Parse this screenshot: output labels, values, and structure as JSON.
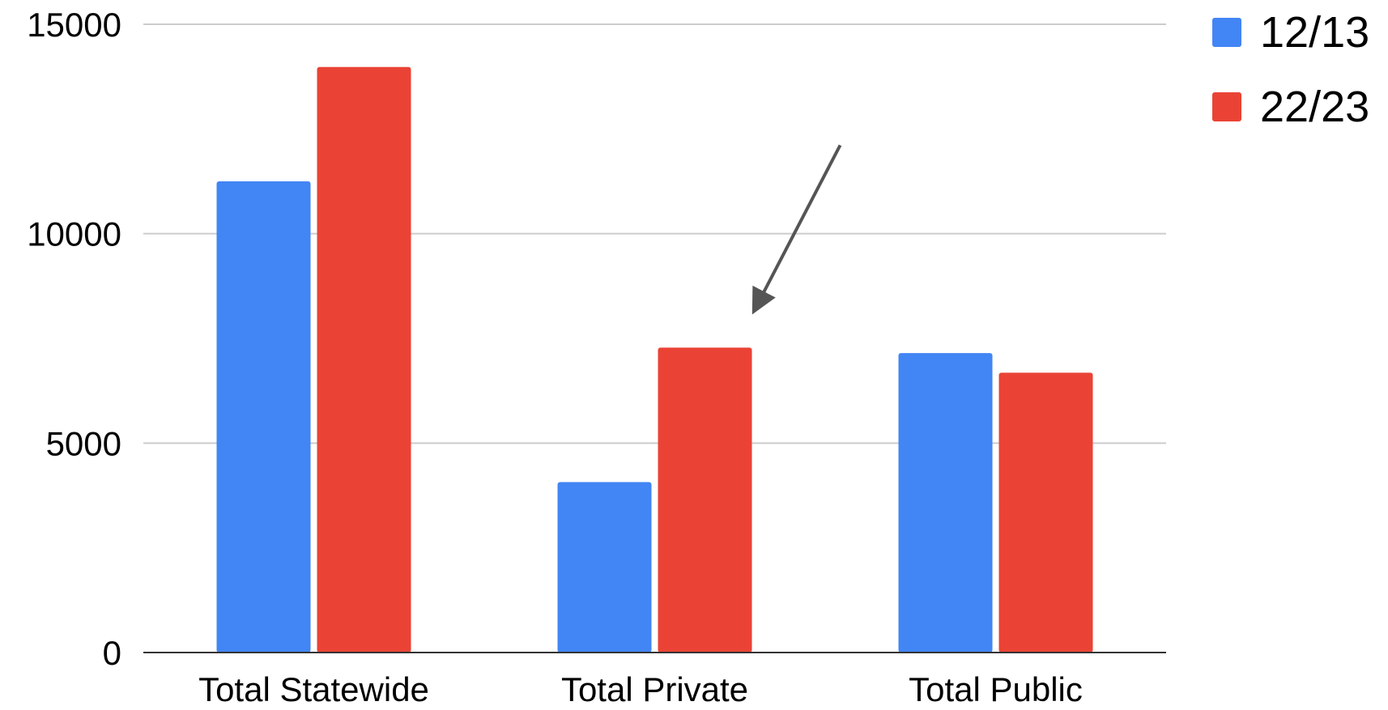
{
  "chart_data": {
    "type": "bar",
    "categories": [
      "Total Statewide",
      "Total Private",
      "Total Public"
    ],
    "series": [
      {
        "name": "12/13",
        "color": "#4285F4",
        "values": [
          11250,
          4070,
          7150
        ]
      },
      {
        "name": "22/23",
        "color": "#EA4335",
        "values": [
          13980,
          7280,
          6680
        ]
      }
    ],
    "ylim": [
      0,
      15000
    ],
    "yticks": [
      "0",
      "5000",
      "10000",
      "15000"
    ],
    "grid": true,
    "legend_position": "top-right",
    "annotation": {
      "type": "arrow",
      "target": "Total Private / 22/23",
      "color": "#555555"
    },
    "title": "",
    "xlabel": "",
    "ylabel": ""
  }
}
